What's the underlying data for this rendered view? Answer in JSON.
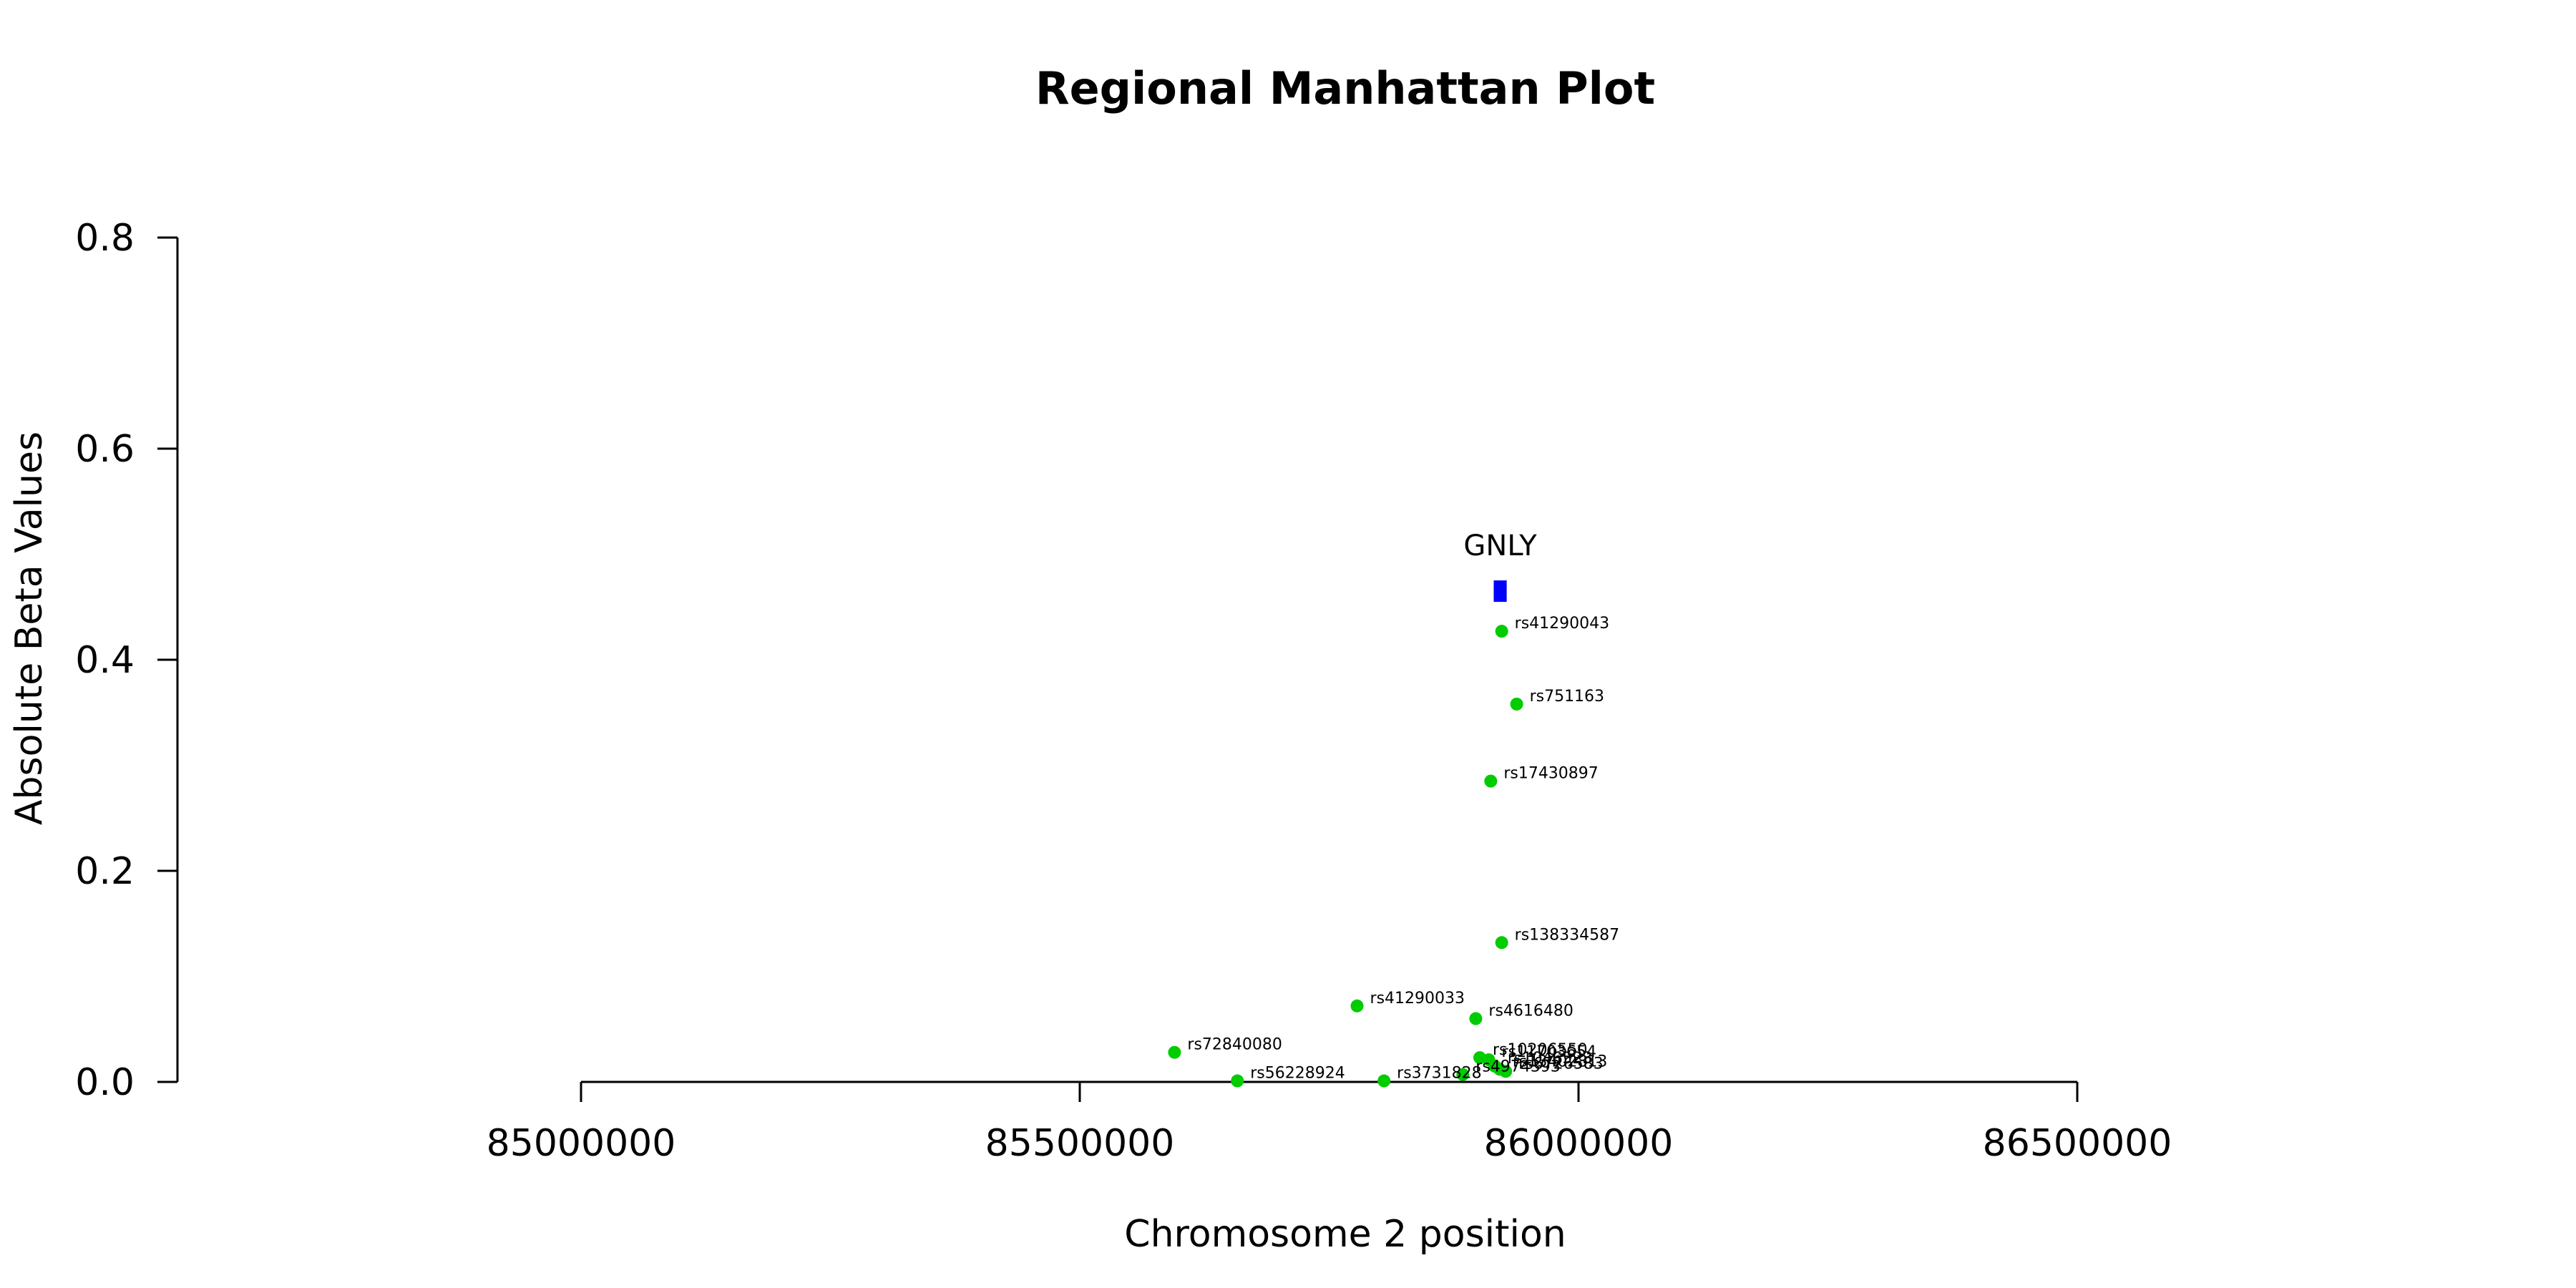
{
  "chart_data": {
    "type": "scatter",
    "title": "Regional Manhattan Plot",
    "xlabel": "Chromosome 2 position",
    "ylabel": "Absolute Beta Values",
    "xlim": [
      85000000,
      86500000
    ],
    "ylim": [
      0,
      0.8
    ],
    "x_ticks": [
      85000000,
      85500000,
      86000000,
      86500000
    ],
    "y_ticks": [
      0.0,
      0.2,
      0.4,
      0.6,
      0.8
    ],
    "x_tick_labels": [
      "85000000",
      "85500000",
      "86000000",
      "86500000"
    ],
    "y_tick_labels": [
      "0.0",
      "0.2",
      "0.4",
      "0.6",
      "0.8"
    ],
    "grid": false,
    "point_color": "#00cc00",
    "gene_color": "#0000ff",
    "genes": [
      {
        "name": "GNLY",
        "start": 85915000,
        "end": 85928000,
        "value": 0.465
      }
    ],
    "points": [
      {
        "id": "rs41290043",
        "x": 85923000,
        "y": 0.427
      },
      {
        "id": "rs751163",
        "x": 85938000,
        "y": 0.358
      },
      {
        "id": "rs17430897",
        "x": 85912000,
        "y": 0.285
      },
      {
        "id": "rs138334587",
        "x": 85923000,
        "y": 0.132
      },
      {
        "id": "rs41290033",
        "x": 85778000,
        "y": 0.072
      },
      {
        "id": "rs4616480",
        "x": 85897000,
        "y": 0.06
      },
      {
        "id": "rs72840080",
        "x": 85595000,
        "y": 0.028
      },
      {
        "id": "rs56228924",
        "x": 85658000,
        "y": 0.001
      },
      {
        "id": "rs3731828",
        "x": 85805000,
        "y": 0.001
      },
      {
        "id": "rs10206550",
        "x": 85901000,
        "y": 0.023
      },
      {
        "id": "rs11703654",
        "x": 85910000,
        "y": 0.021
      },
      {
        "id": "rs1046523",
        "x": 85916000,
        "y": 0.015
      },
      {
        "id": "rs13402813",
        "x": 85921000,
        "y": 0.012
      },
      {
        "id": "rs6726583",
        "x": 85927000,
        "y": 0.01
      },
      {
        "id": "rs4974393",
        "x": 85884000,
        "y": 0.007
      }
    ]
  }
}
